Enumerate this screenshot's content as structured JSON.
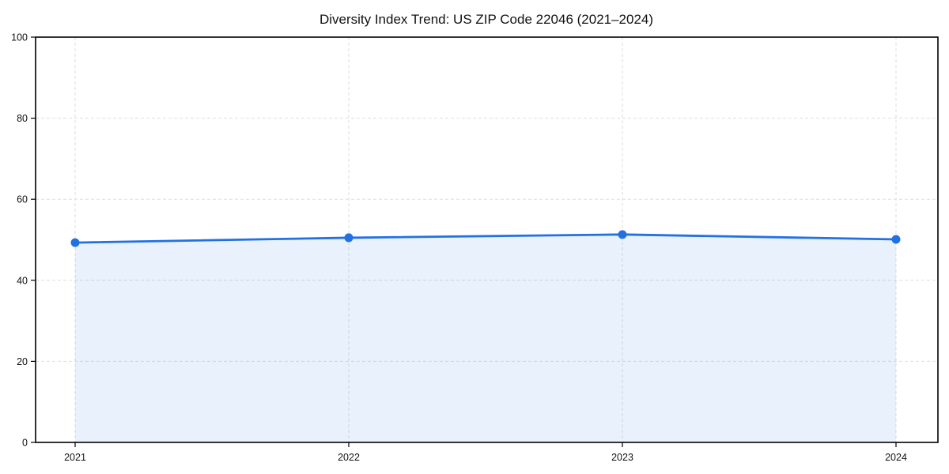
{
  "page": {
    "background": "#ffffff"
  },
  "chart_data": {
    "type": "area",
    "title": "Diversity Index Trend: US ZIP Code 22046 (2021–2024)",
    "x": [
      "2021",
      "2022",
      "2023",
      "2024"
    ],
    "series": [
      {
        "name": "Diversity Index",
        "values": [
          49.3,
          50.5,
          51.3,
          50.1
        ]
      }
    ],
    "xlabel": "",
    "ylabel": "",
    "ylim": [
      0,
      100
    ],
    "yticks": [
      0,
      20,
      40,
      60,
      80,
      100
    ],
    "grid": true,
    "grid_style": "dashed",
    "legend_position": "none",
    "colors": {
      "line": "#2271e3",
      "marker": "#2271e3",
      "fill": "rgba(34, 113, 227, 0.10)",
      "grid": "#dedede",
      "axis": "#000000",
      "text": "#111111",
      "background": "#ffffff"
    }
  }
}
